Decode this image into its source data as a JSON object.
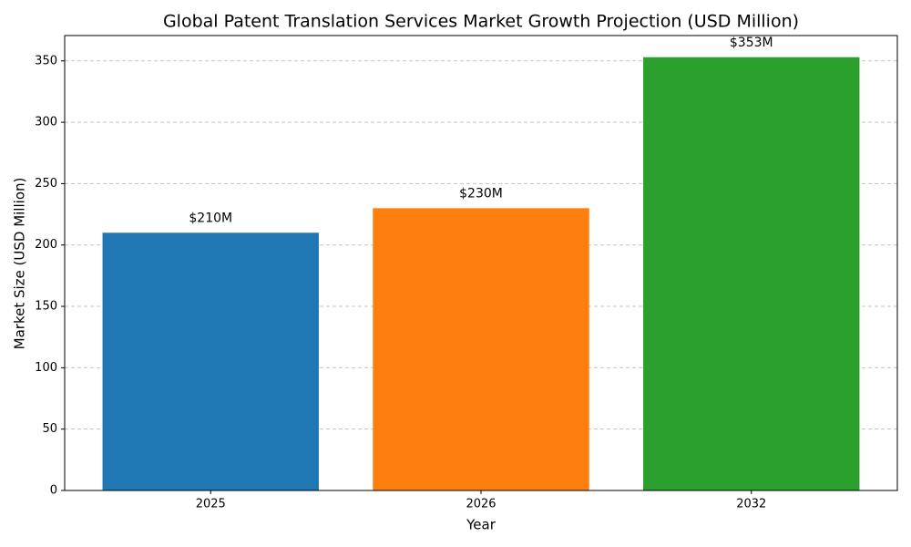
{
  "chart_data": {
    "type": "bar",
    "title": "Global Patent Translation Services Market Growth Projection (USD Million)",
    "x_label": "Year",
    "y_label": "Market Size (USD Million)",
    "categories": [
      "2025",
      "2026",
      "2032"
    ],
    "values": [
      210,
      230,
      353
    ],
    "value_labels": [
      "$210M",
      "$230M",
      "$353M"
    ],
    "colors": [
      "#1f77b4",
      "#ff7f0e",
      "#2ca02c"
    ],
    "ylim": [
      0,
      370.65
    ],
    "yticks": [
      0,
      50,
      100,
      150,
      200,
      250,
      300,
      350
    ],
    "grid": true
  }
}
